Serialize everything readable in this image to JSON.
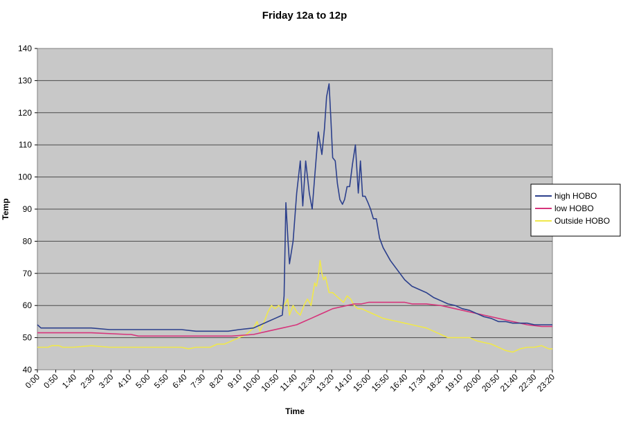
{
  "chart_data": {
    "type": "line",
    "title": "Friday 12a to 12p",
    "xlabel": "Time",
    "ylabel": "Temp",
    "ylim": [
      40,
      140
    ],
    "yticks": [
      40,
      50,
      60,
      70,
      80,
      90,
      100,
      110,
      120,
      130,
      140
    ],
    "x_tick_labels": [
      "0:00",
      "0:50",
      "1:40",
      "2:30",
      "3:20",
      "4:10",
      "5:00",
      "5:50",
      "6:40",
      "7:30",
      "8:20",
      "9:10",
      "10:00",
      "10:50",
      "11:40",
      "12:30",
      "13:20",
      "14:10",
      "15:00",
      "15:50",
      "16:40",
      "17:30",
      "18:20",
      "19:10",
      "20:00",
      "20:50",
      "21:40",
      "22:30",
      "23:20"
    ],
    "x_range_minutes": [
      0,
      1430
    ],
    "grid": "horizontal",
    "legend_position": "right",
    "background_color": "#c8c8c8",
    "series": [
      {
        "name": "high HOBO",
        "color": "#2b3f8c",
        "points": [
          [
            0,
            54
          ],
          [
            10,
            53
          ],
          [
            60,
            53
          ],
          [
            150,
            53
          ],
          [
            200,
            52.5
          ],
          [
            250,
            52.5
          ],
          [
            300,
            52.5
          ],
          [
            400,
            52.5
          ],
          [
            440,
            52
          ],
          [
            480,
            52
          ],
          [
            530,
            52
          ],
          [
            560,
            52.5
          ],
          [
            600,
            53
          ],
          [
            640,
            55
          ],
          [
            660,
            56
          ],
          [
            680,
            57
          ],
          [
            685,
            63
          ],
          [
            690,
            92
          ],
          [
            696,
            80
          ],
          [
            700,
            73
          ],
          [
            710,
            80
          ],
          [
            720,
            95
          ],
          [
            730,
            105
          ],
          [
            737,
            91
          ],
          [
            745,
            105
          ],
          [
            755,
            95
          ],
          [
            763,
            90
          ],
          [
            770,
            100
          ],
          [
            780,
            114
          ],
          [
            790,
            107
          ],
          [
            797,
            115
          ],
          [
            803,
            125
          ],
          [
            810,
            129
          ],
          [
            815,
            118
          ],
          [
            820,
            106
          ],
          [
            827,
            105
          ],
          [
            833,
            98
          ],
          [
            840,
            93
          ],
          [
            847,
            91.5
          ],
          [
            853,
            93
          ],
          [
            860,
            97
          ],
          [
            867,
            97
          ],
          [
            875,
            104
          ],
          [
            883,
            110
          ],
          [
            891,
            95
          ],
          [
            897,
            105
          ],
          [
            903,
            94
          ],
          [
            910,
            94
          ],
          [
            918,
            92
          ],
          [
            925,
            90
          ],
          [
            933,
            87
          ],
          [
            941,
            87
          ],
          [
            950,
            81
          ],
          [
            960,
            78
          ],
          [
            980,
            74
          ],
          [
            1000,
            71
          ],
          [
            1020,
            68
          ],
          [
            1040,
            66
          ],
          [
            1060,
            65
          ],
          [
            1080,
            64
          ],
          [
            1100,
            62.5
          ],
          [
            1120,
            61.5
          ],
          [
            1140,
            60.5
          ],
          [
            1160,
            60
          ],
          [
            1180,
            59
          ],
          [
            1200,
            58.5
          ],
          [
            1220,
            57.5
          ],
          [
            1240,
            56.5
          ],
          [
            1260,
            56
          ],
          [
            1280,
            55
          ],
          [
            1300,
            55
          ],
          [
            1320,
            54.5
          ],
          [
            1340,
            54.5
          ],
          [
            1360,
            54.5
          ],
          [
            1380,
            54
          ],
          [
            1400,
            54
          ],
          [
            1430,
            54
          ]
        ]
      },
      {
        "name": "low HOBO",
        "color": "#d6337a",
        "points": [
          [
            0,
            51.5
          ],
          [
            60,
            51.5
          ],
          [
            150,
            51.5
          ],
          [
            250,
            51
          ],
          [
            260,
            51
          ],
          [
            280,
            50.5
          ],
          [
            350,
            50.5
          ],
          [
            450,
            50.5
          ],
          [
            540,
            50.5
          ],
          [
            600,
            51
          ],
          [
            640,
            52
          ],
          [
            680,
            53
          ],
          [
            700,
            53.5
          ],
          [
            720,
            54
          ],
          [
            740,
            55
          ],
          [
            760,
            56
          ],
          [
            780,
            57
          ],
          [
            800,
            58
          ],
          [
            820,
            59
          ],
          [
            840,
            59.5
          ],
          [
            860,
            60
          ],
          [
            880,
            60.5
          ],
          [
            900,
            60.5
          ],
          [
            920,
            61
          ],
          [
            940,
            61
          ],
          [
            960,
            61
          ],
          [
            980,
            61
          ],
          [
            1000,
            61
          ],
          [
            1020,
            61
          ],
          [
            1040,
            60.5
          ],
          [
            1080,
            60.5
          ],
          [
            1120,
            60
          ],
          [
            1160,
            59
          ],
          [
            1200,
            58
          ],
          [
            1240,
            57
          ],
          [
            1280,
            56
          ],
          [
            1300,
            55.5
          ],
          [
            1320,
            55
          ],
          [
            1340,
            54.5
          ],
          [
            1360,
            54
          ],
          [
            1400,
            53.5
          ],
          [
            1430,
            53.5
          ]
        ]
      },
      {
        "name": "Outside HOBO",
        "color": "#f0e84a",
        "points": [
          [
            0,
            47
          ],
          [
            30,
            47
          ],
          [
            40,
            47.5
          ],
          [
            60,
            47.5
          ],
          [
            70,
            47
          ],
          [
            100,
            47
          ],
          [
            150,
            47.5
          ],
          [
            200,
            47
          ],
          [
            250,
            47
          ],
          [
            300,
            47
          ],
          [
            350,
            47
          ],
          [
            400,
            47
          ],
          [
            420,
            46.5
          ],
          [
            440,
            47
          ],
          [
            460,
            47
          ],
          [
            480,
            47
          ],
          [
            500,
            48
          ],
          [
            520,
            48
          ],
          [
            540,
            49
          ],
          [
            560,
            50
          ],
          [
            580,
            51
          ],
          [
            600,
            53
          ],
          [
            610,
            55
          ],
          [
            618,
            52
          ],
          [
            630,
            55
          ],
          [
            640,
            58
          ],
          [
            650,
            60
          ],
          [
            660,
            59
          ],
          [
            670,
            60
          ],
          [
            680,
            59
          ],
          [
            690,
            61
          ],
          [
            695,
            62
          ],
          [
            700,
            57
          ],
          [
            710,
            60
          ],
          [
            720,
            58
          ],
          [
            730,
            57
          ],
          [
            740,
            60
          ],
          [
            750,
            62
          ],
          [
            760,
            60
          ],
          [
            770,
            67
          ],
          [
            775,
            66
          ],
          [
            780,
            69
          ],
          [
            785,
            74
          ],
          [
            790,
            70
          ],
          [
            795,
            68
          ],
          [
            800,
            69
          ],
          [
            810,
            64
          ],
          [
            820,
            64
          ],
          [
            830,
            63
          ],
          [
            840,
            62
          ],
          [
            850,
            61
          ],
          [
            860,
            63
          ],
          [
            870,
            62
          ],
          [
            880,
            60
          ],
          [
            890,
            59
          ],
          [
            900,
            59
          ],
          [
            920,
            58
          ],
          [
            940,
            57
          ],
          [
            960,
            56
          ],
          [
            980,
            55.5
          ],
          [
            1000,
            55
          ],
          [
            1020,
            54.5
          ],
          [
            1040,
            54
          ],
          [
            1060,
            53.5
          ],
          [
            1080,
            53
          ],
          [
            1100,
            52
          ],
          [
            1120,
            51
          ],
          [
            1140,
            50
          ],
          [
            1160,
            50
          ],
          [
            1180,
            50
          ],
          [
            1200,
            50
          ],
          [
            1220,
            49
          ],
          [
            1240,
            48.5
          ],
          [
            1260,
            48
          ],
          [
            1280,
            47
          ],
          [
            1300,
            46
          ],
          [
            1320,
            45.5
          ],
          [
            1340,
            46.5
          ],
          [
            1360,
            47
          ],
          [
            1380,
            47
          ],
          [
            1400,
            47.5
          ],
          [
            1420,
            46.5
          ],
          [
            1430,
            46.5
          ]
        ]
      }
    ]
  }
}
